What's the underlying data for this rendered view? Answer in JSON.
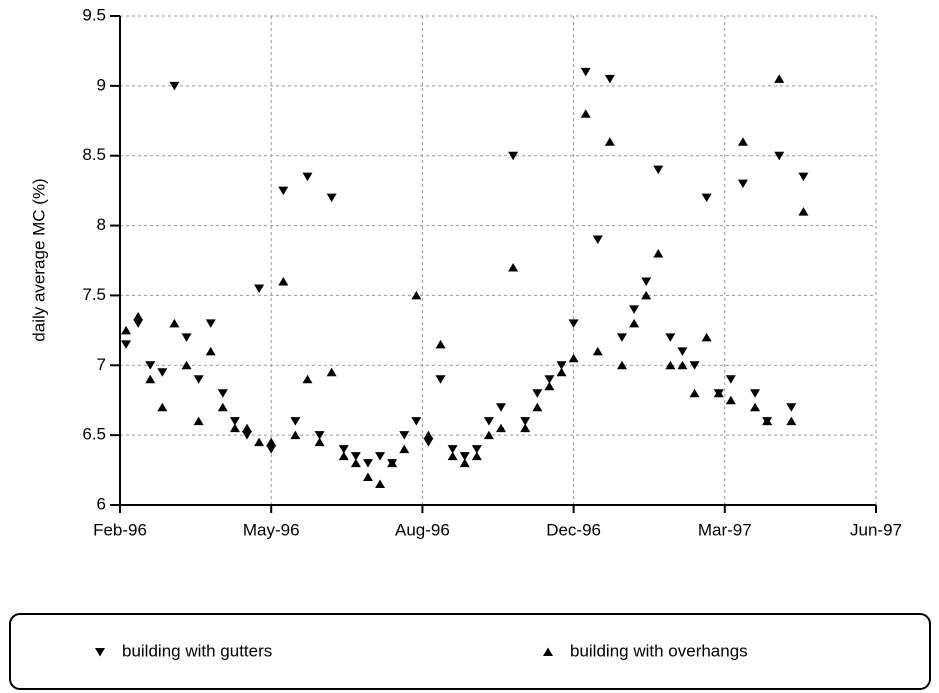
{
  "chart_data": {
    "type": "scatter",
    "y_label": "daily average MC (%)",
    "x": [
      35104,
      35112,
      35120,
      35128,
      35136,
      35144,
      35152,
      35160,
      35168,
      35176,
      35184,
      35192,
      35200,
      35208,
      35216,
      35224,
      35232,
      35240,
      35248,
      35256,
      35264,
      35272,
      35280,
      35288,
      35296,
      35304,
      35312,
      35320,
      35328,
      35336,
      35344,
      35352,
      35360,
      35368,
      35376,
      35384,
      35392,
      35400,
      35408,
      35416,
      35424,
      35432,
      35440,
      35448,
      35456,
      35464,
      35472,
      35480,
      35488,
      35496,
      35504,
      35512,
      35520,
      35528,
      35536,
      35544,
      35552
    ],
    "series": [
      {
        "name": "building with gutters",
        "color": "#000000",
        "marker": "triangle-down",
        "values": [
          7.15,
          7.3,
          7.0,
          6.95,
          9.0,
          7.2,
          6.9,
          7.3,
          6.8,
          6.6,
          6.5,
          7.55,
          6.4,
          8.25,
          6.6,
          8.35,
          6.5,
          8.2,
          6.4,
          6.35,
          6.3,
          6.35,
          6.3,
          6.5,
          6.6,
          6.45,
          6.9,
          6.4,
          6.35,
          6.4,
          6.6,
          6.7,
          8.5,
          6.6,
          6.8,
          6.9,
          7.0,
          7.3,
          9.1,
          7.9,
          9.05,
          7.2,
          7.4,
          7.6,
          8.4,
          7.2,
          7.1,
          7.0,
          8.2,
          6.8,
          6.9,
          8.3,
          6.8,
          6.6,
          8.5,
          6.7,
          8.35
        ]
      },
      {
        "name": "building with overhangs",
        "color": "#000000",
        "marker": "triangle-up",
        "values": [
          7.25,
          7.35,
          6.9,
          6.7,
          7.3,
          7.0,
          6.6,
          7.1,
          6.7,
          6.55,
          6.55,
          6.45,
          6.45,
          7.6,
          6.5,
          6.9,
          6.45,
          6.95,
          6.35,
          6.3,
          6.2,
          6.15,
          6.3,
          6.4,
          7.5,
          6.5,
          7.15,
          6.35,
          6.3,
          6.35,
          6.5,
          6.55,
          7.7,
          6.55,
          6.7,
          6.85,
          6.95,
          7.05,
          8.8,
          7.1,
          8.6,
          7.0,
          7.3,
          7.5,
          7.8,
          7.0,
          7.0,
          6.8,
          7.2,
          6.8,
          6.75,
          8.6,
          6.7,
          6.6,
          9.05,
          6.6,
          8.1
        ]
      }
    ],
    "xlim": [
      35100,
      35600
    ],
    "xticks": [
      {
        "value": 35100,
        "label": "Feb-96"
      },
      {
        "value": 35200,
        "label": "May-96"
      },
      {
        "value": 35300,
        "label": "Aug-96"
      },
      {
        "value": 35400,
        "label": "Dec-96"
      },
      {
        "value": 35500,
        "label": "Mar-97"
      },
      {
        "value": 35600,
        "label": "Jun-97"
      }
    ],
    "ylim": [
      6,
      9.5
    ],
    "yticks": [
      6,
      6.5,
      7,
      7.5,
      8,
      8.5,
      9,
      9.5
    ],
    "grid": true
  }
}
